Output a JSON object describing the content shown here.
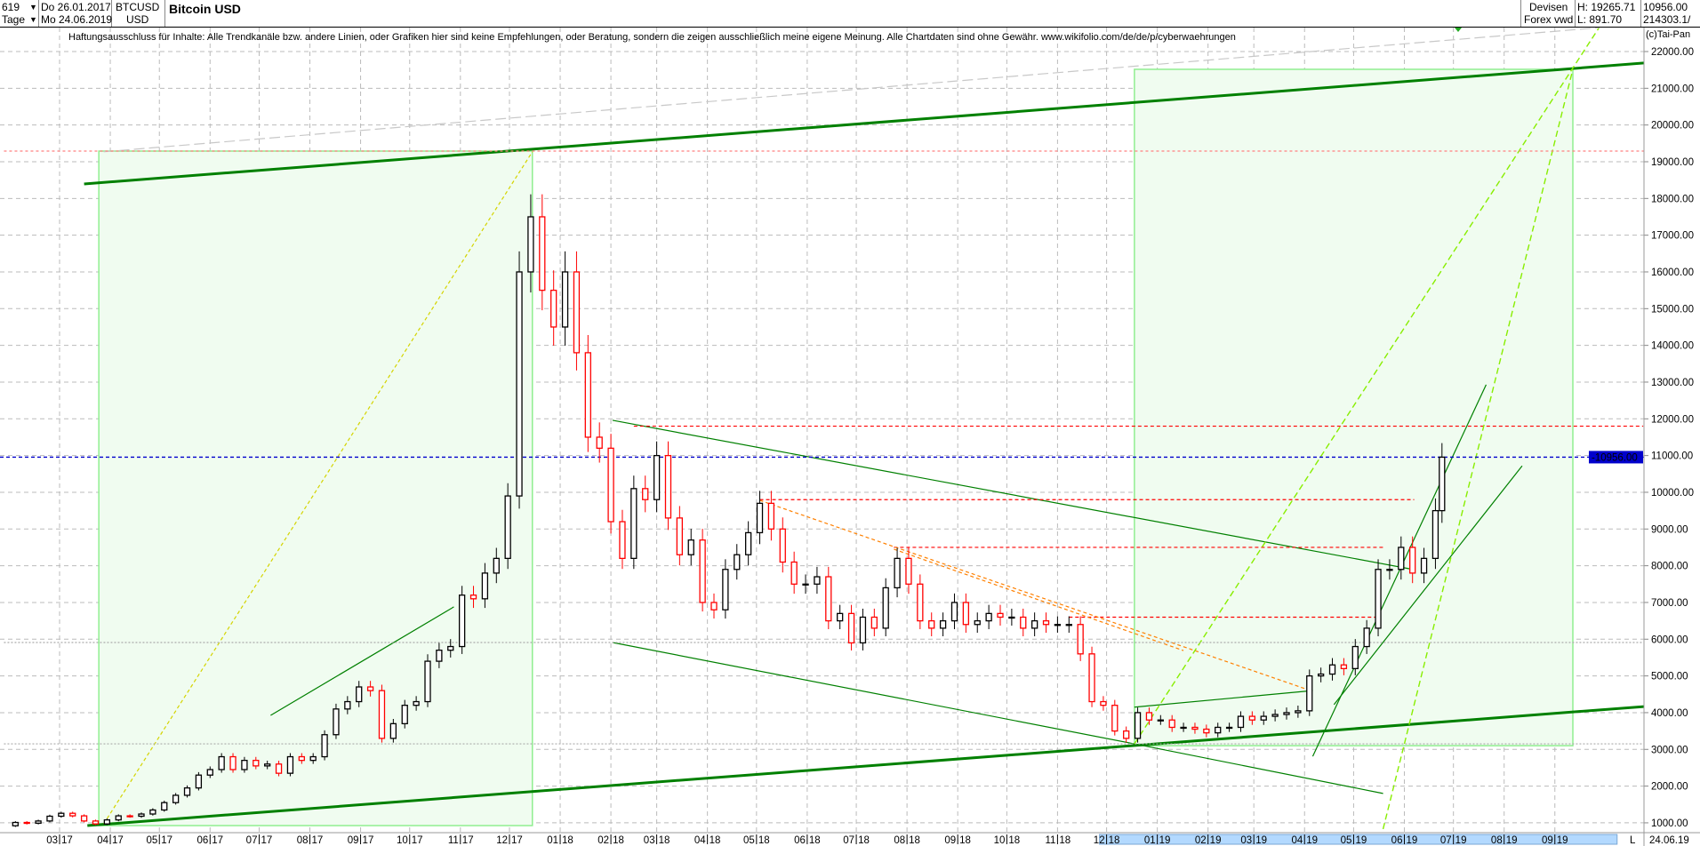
{
  "header": {
    "period_count": "619",
    "period_unit": "Tage",
    "date_from": "Do 26.01.2017",
    "date_to": "Mo 24.06.2019",
    "symbol": "BTCUSD",
    "currency": "USD",
    "title": "Bitcoin USD",
    "market": "Devisen",
    "source": "Forex vwd",
    "high": "H: 19265.71",
    "low": "L: 891.70",
    "last": "10956.00",
    "volume": "214303.1/"
  },
  "disclaimer": "Haftungsausschluss für Inhalte: Alle Trendkanäle bzw. andere Linien, oder Grafiken hier sind keine Empfehlungen, oder Beratung, sondern die zeigen ausschließlich meine eigene Meinung. Alle Chartdaten sind ohne Gewähr.  www.wikifolio.com/de/de/p/cyberwaehrungen",
  "copyright": "(c)Tai-Pan",
  "axis_footer": {
    "mode_label": "L",
    "end_date": "24.06.19"
  },
  "chart_data": {
    "type": "candlestick",
    "title": "Bitcoin USD",
    "ylim": [
      1000,
      22000
    ],
    "yticks": [
      "1000.00",
      "2000.00",
      "3000.00",
      "4000.00",
      "5000.00",
      "6000.00",
      "7000.00",
      "8000.00",
      "9000.00",
      "10000.00",
      "11000.00",
      "12000.00",
      "13000.00",
      "14000.00",
      "15000.00",
      "16000.00",
      "17000.00",
      "18000.00",
      "19000.00",
      "20000.00",
      "21000.00",
      "22000.00"
    ],
    "xticks": [
      "03|17",
      "04|17",
      "05|17",
      "06|17",
      "07|17",
      "08|17",
      "09|17",
      "10|17",
      "11|17",
      "12|17",
      "01|18",
      "02|18",
      "03|18",
      "04|18",
      "05|18",
      "06|18",
      "07|18",
      "08|18",
      "09|18",
      "10|18",
      "11|18",
      "12|18",
      "01|19",
      "02|19",
      "03|19",
      "04|19",
      "05|19",
      "06|19",
      "07|19",
      "08|19",
      "09|19"
    ],
    "last_price_label": "10956.00",
    "grid": true,
    "colors": {
      "up": "#000000",
      "down": "#ff0000",
      "trend": "#008000",
      "box": "#ccf5cc",
      "last": "#0000cc",
      "resistance": "#ff0000",
      "orange": "#ff8000",
      "yellow": "#d4d400",
      "lime": "#88ee00"
    },
    "weekly_close": [
      [
        "2017-01-26",
        920
      ],
      [
        "2017-02-02",
        1010
      ],
      [
        "2017-02-09",
        990
      ],
      [
        "2017-02-16",
        1050
      ],
      [
        "2017-02-23",
        1180
      ],
      [
        "2017-03-02",
        1260
      ],
      [
        "2017-03-09",
        1190
      ],
      [
        "2017-03-16",
        1050
      ],
      [
        "2017-03-23",
        970
      ],
      [
        "2017-03-30",
        1080
      ],
      [
        "2017-04-06",
        1190
      ],
      [
        "2017-04-13",
        1180
      ],
      [
        "2017-04-20",
        1240
      ],
      [
        "2017-04-27",
        1350
      ],
      [
        "2017-05-04",
        1550
      ],
      [
        "2017-05-11",
        1750
      ],
      [
        "2017-05-18",
        1950
      ],
      [
        "2017-05-25",
        2300
      ],
      [
        "2017-06-01",
        2450
      ],
      [
        "2017-06-08",
        2800
      ],
      [
        "2017-06-15",
        2450
      ],
      [
        "2017-06-22",
        2700
      ],
      [
        "2017-06-29",
        2550
      ],
      [
        "2017-07-06",
        2600
      ],
      [
        "2017-07-13",
        2350
      ],
      [
        "2017-07-20",
        2800
      ],
      [
        "2017-07-27",
        2700
      ],
      [
        "2017-08-03",
        2800
      ],
      [
        "2017-08-10",
        3400
      ],
      [
        "2017-08-17",
        4100
      ],
      [
        "2017-08-24",
        4300
      ],
      [
        "2017-08-31",
        4700
      ],
      [
        "2017-09-07",
        4600
      ],
      [
        "2017-09-14",
        3300
      ],
      [
        "2017-09-21",
        3700
      ],
      [
        "2017-09-28",
        4200
      ],
      [
        "2017-10-05",
        4300
      ],
      [
        "2017-10-12",
        5400
      ],
      [
        "2017-10-19",
        5700
      ],
      [
        "2017-10-26",
        5800
      ],
      [
        "2017-11-02",
        7200
      ],
      [
        "2017-11-09",
        7100
      ],
      [
        "2017-11-16",
        7800
      ],
      [
        "2017-11-23",
        8200
      ],
      [
        "2017-11-30",
        9900
      ],
      [
        "2017-12-07",
        16000
      ],
      [
        "2017-12-14",
        17500
      ],
      [
        "2017-12-21",
        15500
      ],
      [
        "2017-12-28",
        14500
      ],
      [
        "2018-01-04",
        16000
      ],
      [
        "2018-01-11",
        13800
      ],
      [
        "2018-01-18",
        11500
      ],
      [
        "2018-01-25",
        11200
      ],
      [
        "2018-02-01",
        9200
      ],
      [
        "2018-02-08",
        8200
      ],
      [
        "2018-02-15",
        10100
      ],
      [
        "2018-02-22",
        9800
      ],
      [
        "2018-03-01",
        11000
      ],
      [
        "2018-03-08",
        9300
      ],
      [
        "2018-03-15",
        8300
      ],
      [
        "2018-03-22",
        8700
      ],
      [
        "2018-03-29",
        7000
      ],
      [
        "2018-04-05",
        6800
      ],
      [
        "2018-04-12",
        7900
      ],
      [
        "2018-04-19",
        8300
      ],
      [
        "2018-04-26",
        8900
      ],
      [
        "2018-05-03",
        9700
      ],
      [
        "2018-05-10",
        9000
      ],
      [
        "2018-05-17",
        8100
      ],
      [
        "2018-05-24",
        7500
      ],
      [
        "2018-05-31",
        7500
      ],
      [
        "2018-06-07",
        7700
      ],
      [
        "2018-06-14",
        6500
      ],
      [
        "2018-06-21",
        6700
      ],
      [
        "2018-06-28",
        5900
      ],
      [
        "2018-07-05",
        6600
      ],
      [
        "2018-07-12",
        6300
      ],
      [
        "2018-07-19",
        7400
      ],
      [
        "2018-07-26",
        8200
      ],
      [
        "2018-08-02",
        7500
      ],
      [
        "2018-08-09",
        6500
      ],
      [
        "2018-08-16",
        6300
      ],
      [
        "2018-08-23",
        6500
      ],
      [
        "2018-08-30",
        7000
      ],
      [
        "2018-09-06",
        6400
      ],
      [
        "2018-09-13",
        6500
      ],
      [
        "2018-09-20",
        6700
      ],
      [
        "2018-09-27",
        6600
      ],
      [
        "2018-10-04",
        6600
      ],
      [
        "2018-10-11",
        6300
      ],
      [
        "2018-10-18",
        6500
      ],
      [
        "2018-10-25",
        6400
      ],
      [
        "2018-11-01",
        6400
      ],
      [
        "2018-11-08",
        6400
      ],
      [
        "2018-11-15",
        5600
      ],
      [
        "2018-11-22",
        4300
      ],
      [
        "2018-11-29",
        4200
      ],
      [
        "2018-12-06",
        3500
      ],
      [
        "2018-12-13",
        3300
      ],
      [
        "2018-12-20",
        4000
      ],
      [
        "2018-12-27",
        3800
      ],
      [
        "2019-01-03",
        3800
      ],
      [
        "2019-01-10",
        3600
      ],
      [
        "2019-01-17",
        3600
      ],
      [
        "2019-01-24",
        3550
      ],
      [
        "2019-01-31",
        3450
      ],
      [
        "2019-02-07",
        3600
      ],
      [
        "2019-02-14",
        3600
      ],
      [
        "2019-02-21",
        3900
      ],
      [
        "2019-02-28",
        3800
      ],
      [
        "2019-03-07",
        3900
      ],
      [
        "2019-03-14",
        3950
      ],
      [
        "2019-03-21",
        4000
      ],
      [
        "2019-03-28",
        4050
      ],
      [
        "2019-04-04",
        5000
      ],
      [
        "2019-04-11",
        5050
      ],
      [
        "2019-04-18",
        5300
      ],
      [
        "2019-04-25",
        5200
      ],
      [
        "2019-05-02",
        5800
      ],
      [
        "2019-05-09",
        6300
      ],
      [
        "2019-05-16",
        7900
      ],
      [
        "2019-05-23",
        7900
      ],
      [
        "2019-05-30",
        8500
      ],
      [
        "2019-06-06",
        7800
      ],
      [
        "2019-06-13",
        8200
      ],
      [
        "2019-06-20",
        9500
      ],
      [
        "2019-06-24",
        10956
      ]
    ],
    "boxes": [
      {
        "from": [
          "2017-03-25",
          19290
        ],
        "to": [
          "2017-12-15",
          925
        ]
      },
      {
        "from": [
          "2018-12-18",
          21516
        ],
        "to": [
          "2019-09-12",
          3100
        ]
      }
    ],
    "lines": [
      {
        "kind": "trend-thick",
        "from": [
          "2017-03-16",
          18395
        ],
        "to": [
          "2019-10-26",
          21690
        ]
      },
      {
        "kind": "trend-thick",
        "from": [
          "2017-03-18",
          925
        ],
        "to": [
          "2019-10-26",
          4168
        ]
      },
      {
        "kind": "trend",
        "from": [
          "2018-02-02",
          11960
        ],
        "to": [
          "2019-06-04",
          7918
        ]
      },
      {
        "kind": "trend",
        "from": [
          "2018-02-02",
          5910
        ],
        "to": [
          "2018-12-18",
          3150
        ]
      },
      {
        "kind": "trend",
        "from": [
          "2018-12-18",
          3150
        ],
        "to": [
          "2019-05-19",
          1800
        ]
      },
      {
        "kind": "trend",
        "from": [
          "2019-04-06",
          2810
        ],
        "to": [
          "2019-07-21",
          12930
        ]
      },
      {
        "kind": "trend",
        "from": [
          "2019-04-19",
          4220
        ],
        "to": [
          "2019-08-12",
          10720
        ]
      },
      {
        "kind": "trend",
        "from": [
          "2017-07-08",
          3925
        ],
        "to": [
          "2017-10-28",
          6880
        ]
      },
      {
        "kind": "trend",
        "from": [
          "2018-12-18",
          4150
        ],
        "to": [
          "2019-04-06",
          4600
        ]
      },
      {
        "kind": "resistance",
        "from": [
          "2018-02-15",
          11800
        ],
        "to": [
          "2019-10-25",
          11800
        ]
      },
      {
        "kind": "resistance",
        "from": [
          "2018-05-03",
          9800
        ],
        "to": [
          "2019-06-07",
          9800
        ]
      },
      {
        "kind": "resistance",
        "from": [
          "2018-07-24",
          8500
        ],
        "to": [
          "2019-05-19",
          8500
        ]
      },
      {
        "kind": "resistance",
        "from": [
          "2018-11-08",
          6600
        ],
        "to": [
          "2019-05-16",
          6600
        ]
      },
      {
        "kind": "orange",
        "from": [
          "2018-05-03",
          9780
        ],
        "to": [
          "2019-04-06",
          4580
        ]
      },
      {
        "kind": "orange",
        "from": [
          "2018-07-24",
          8450
        ],
        "to": [
          "2019-01-17",
          5690
        ]
      },
      {
        "kind": "yellow",
        "from": [
          "2017-03-28",
          975
        ],
        "to": [
          "2017-12-15",
          19270
        ]
      },
      {
        "kind": "lime",
        "from": [
          "2018-12-18",
          3150
        ],
        "to": [
          "2019-09-28",
          22650
        ]
      },
      {
        "kind": "lime",
        "from": [
          "2019-05-19",
          830
        ],
        "to": [
          "2019-09-12",
          21516
        ]
      },
      {
        "kind": "gray",
        "from": [
          "2017-03-28",
          19270
        ],
        "to": [
          "2019-09-28",
          22650
        ]
      },
      {
        "kind": "red-dot",
        "from": [
          "2017-01-26",
          19290
        ],
        "to": [
          "2019-10-26",
          19290
        ]
      },
      {
        "kind": "gray-dot",
        "from": [
          "2017-01-26",
          5910
        ],
        "to": [
          "2019-10-26",
          5910
        ]
      },
      {
        "kind": "gray-dot",
        "from": [
          "2017-01-26",
          3150
        ],
        "to": [
          "2019-10-26",
          3150
        ]
      }
    ]
  }
}
